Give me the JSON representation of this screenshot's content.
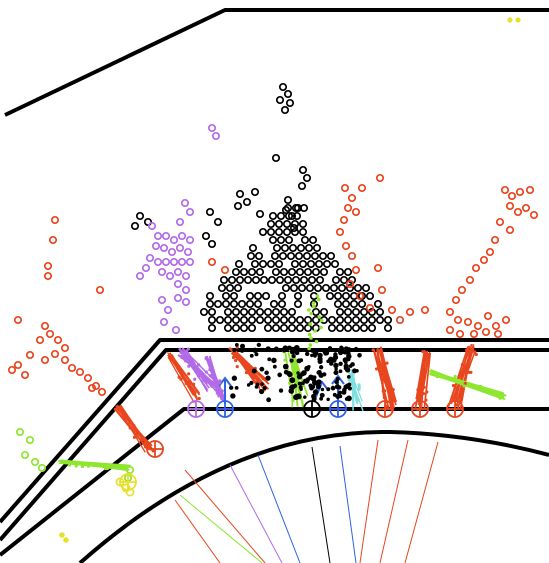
{
  "scene": {
    "background": "#ffffff",
    "outline_color": "#000000",
    "colors": {
      "black": "#000000",
      "red": "#e8461e",
      "purple": "#b26be6",
      "green": "#8ee62e",
      "blue": "#2f63e6",
      "cyan": "#7fe0e0",
      "yellow": "#e8e02e"
    },
    "particle_groups": [
      {
        "name": "black-hits",
        "color": "black"
      },
      {
        "name": "red-hits",
        "color": "red"
      },
      {
        "name": "purple-hits",
        "color": "purple"
      },
      {
        "name": "green-hits",
        "color": "green"
      },
      {
        "name": "blue-hits",
        "color": "blue"
      },
      {
        "name": "yellow-hits",
        "color": "yellow"
      }
    ]
  }
}
